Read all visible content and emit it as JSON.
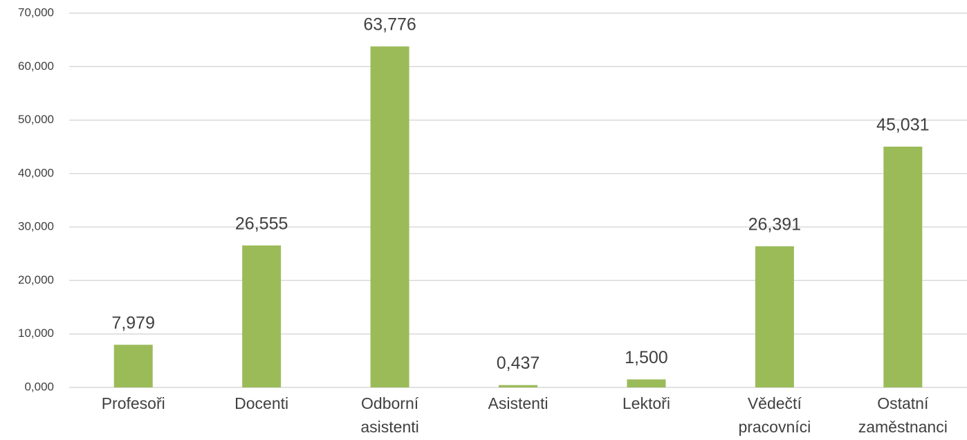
{
  "chart_data": {
    "type": "bar",
    "categories": [
      "Profesoři",
      "Docenti",
      "Odborní asistenti",
      "Asistenti",
      "Lektoři",
      "Vědečtí pracovníci",
      "Ostatní zaměstnanci"
    ],
    "values": [
      7.979,
      26.555,
      63.776,
      0.437,
      1.5,
      26.391,
      45.031
    ],
    "value_labels": [
      "7,979",
      "26,555",
      "63,776",
      "0,437",
      "1,500",
      "26,391",
      "45,031"
    ],
    "color": "#9bbb59",
    "ylim": [
      0,
      70
    ],
    "yticks": [
      {
        "value": 0,
        "label": "0,000"
      },
      {
        "value": 10,
        "label": "10,000"
      },
      {
        "value": 20,
        "label": "20,000"
      },
      {
        "value": 30,
        "label": "30,000"
      },
      {
        "value": 40,
        "label": "40,000"
      },
      {
        "value": 50,
        "label": "50,000"
      },
      {
        "value": 60,
        "label": "60,000"
      },
      {
        "value": 70,
        "label": "70,000"
      }
    ],
    "grid": true
  }
}
